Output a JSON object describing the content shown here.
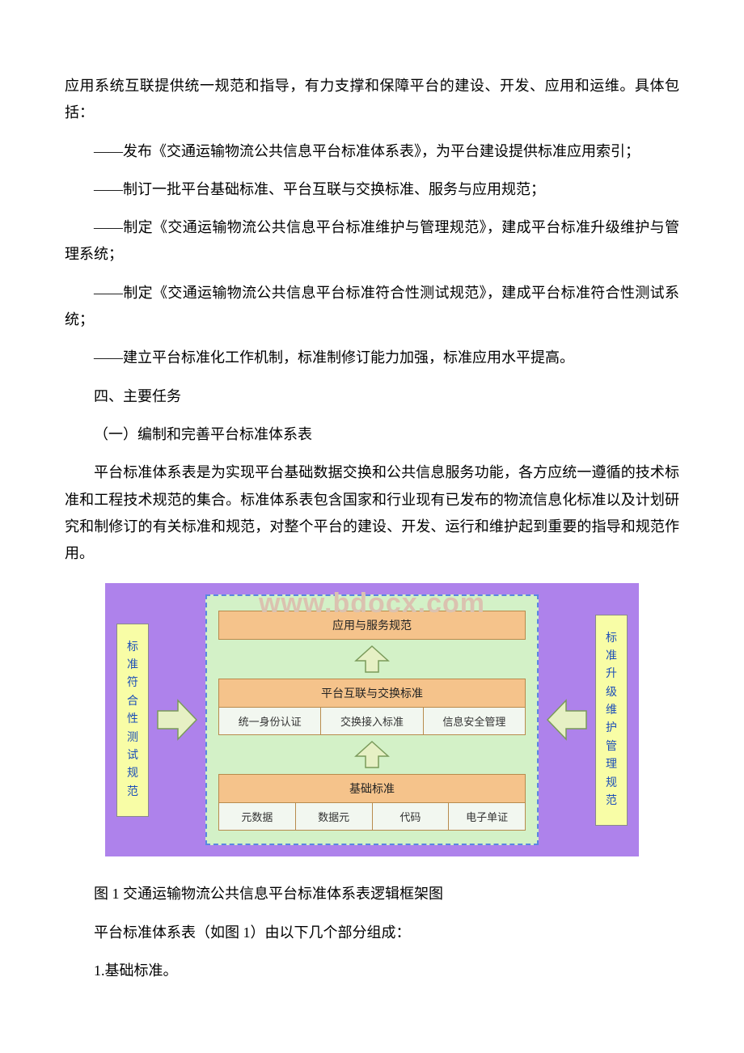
{
  "paragraphs": {
    "p1": "应用系统互联提供统一规范和指导，有力支撑和保障平台的建设、开发、应用和运维。具体包括：",
    "p2": "——发布《交通运输物流公共信息平台标准体系表》，为平台建设提供标准应用索引；",
    "p3": "——制订一批平台基础标准、平台互联与交换标准、服务与应用规范；",
    "p4": "——制定《交通运输物流公共信息平台标准维护与管理规范》，建成平台标准升级维护与管理系统；",
    "p5": "——制定《交通运输物流公共信息平台标准符合性测试规范》，建成平台标准符合性测试系统；",
    "p6": "——建立平台标准化工作机制，标准制修订能力加强，标准应用水平提高。",
    "p7": "四、主要任务",
    "p8": "（一）编制和完善平台标准体系表",
    "p9": "平台标准体系表是为实现平台基础数据交换和公共信息服务功能，各方应统一遵循的技术标准和工程技术规范的集合。标准体系表包含国家和行业现有已发布的物流信息化标准以及计划研究和制修订的有关标准和规范，对整个平台的建设、开发、运行和维护起到重要的指导和规范作用。",
    "caption": "图 1 交通运输物流公共信息平台标准体系表逻辑框架图",
    "p10": "平台标准体系表（如图 1）由以下几个部分组成：",
    "p11": "1.基础标准。"
  },
  "watermark": "www.bdocx.com",
  "diagram": {
    "background_outer": "#ae82eb",
    "background_center": "#d3f1c7",
    "dashed_border_color": "#5a87e2",
    "side_bg": "#f8fda6",
    "side_text_color": "#1c4fb8",
    "layer_header_bg": "#f5c38b",
    "layer_cell_bg": "#f2f7f0",
    "layer_border": "#b88b4d",
    "arrow_fill": "#e6f0c4",
    "arrow_stroke": "#7a9a5a",
    "left_label": "标准符合性测试规范",
    "right_label": "标准升级维护管理规范",
    "layer_top": {
      "title": "应用与服务规范"
    },
    "layer_mid": {
      "title": "平台互联与交换标准",
      "cells": [
        "统一身份认证",
        "交换接入标准",
        "信息安全管理"
      ]
    },
    "layer_bot": {
      "title": "基础标准",
      "cells": [
        "元数据",
        "数据元",
        "代码",
        "电子单证"
      ]
    }
  }
}
